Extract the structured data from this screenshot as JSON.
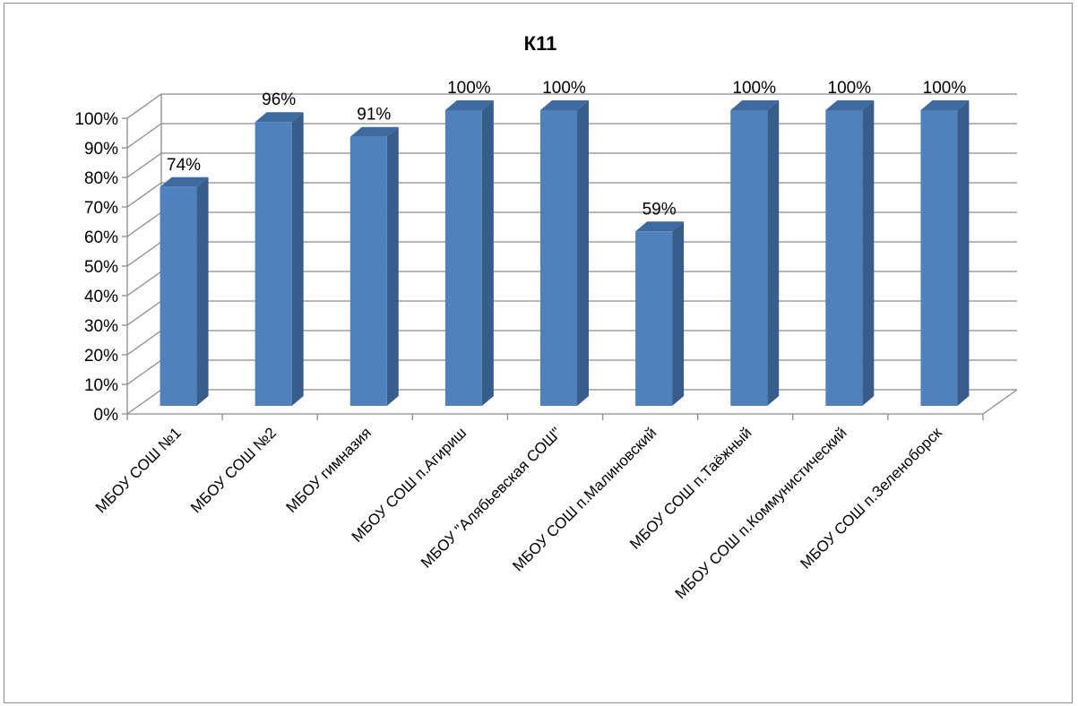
{
  "chart_data": {
    "type": "bar",
    "title": "К11",
    "categories": [
      "МБОУ СОШ №1",
      "МБОУ СОШ №2",
      "МБОУ гимназия",
      "МБОУ СОШ п.Агириш",
      "МБОУ \"Алябьевская СОШ\"",
      "МБОУ СОШ п.Малиновский",
      "МБОУ СОШ п.Таёжный",
      "МБОУ СОШ п.Коммунистический",
      "МБОУ СОШ п.Зеленоборск"
    ],
    "values": [
      74,
      96,
      91,
      100,
      100,
      59,
      100,
      100,
      100
    ],
    "value_labels": [
      "74%",
      "96%",
      "91%",
      "100%",
      "100%",
      "59%",
      "100%",
      "100%",
      "100%"
    ],
    "yticks": [
      "0%",
      "10%",
      "20%",
      "30%",
      "40%",
      "50%",
      "60%",
      "70%",
      "80%",
      "90%",
      "100%"
    ],
    "ylim": [
      0,
      100
    ],
    "grid": true,
    "legend": "none",
    "colors": {
      "front": "#4f81bd",
      "side": "#385d8a",
      "top": "#3f6aa0",
      "grid": "#8c8c8c"
    }
  }
}
